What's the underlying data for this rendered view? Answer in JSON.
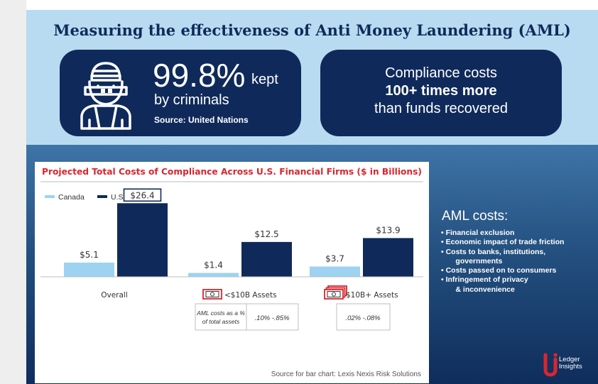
{
  "title": "Measuring the effectiveness of Anti Money Laundering (AML)",
  "stat_left": {
    "big": "99.8%",
    "small": "kept",
    "sub": "by criminals",
    "source": "Source: United Nations",
    "icon": "criminal-icon"
  },
  "stat_right": {
    "line1": "Compliance costs",
    "line2": "100+ times more",
    "line3": "than funds recovered"
  },
  "chart_data": {
    "type": "bar",
    "title": "Projected Total Costs of Compliance Across U.S. Financial Firms ($ in Billions)",
    "categories": [
      "Overall",
      "<$10B Assets",
      "$10B+ Assets"
    ],
    "series": [
      {
        "name": "Canada",
        "values": [
          5.1,
          1.4,
          3.7
        ],
        "labels": [
          "$5.1",
          "$1.4",
          "$3.7"
        ],
        "color": "#9dd3f1"
      },
      {
        "name": "U.S.",
        "values": [
          26.4,
          12.5,
          13.9
        ],
        "labels": [
          "$26.4",
          "$12.5",
          "$13.9"
        ],
        "color": "#0f2a5a"
      }
    ],
    "ylim": [
      0,
      28
    ],
    "grid": false,
    "legend": "top-left",
    "highlight": "$26.4",
    "category_icons": [
      "",
      "cash-icon",
      "cash-stack-icon"
    ],
    "table": {
      "label": [
        "AML costs as a %",
        "of total assets"
      ],
      "values": [
        ".10% -.85%",
        ".02% -.08%"
      ]
    },
    "source": "Source for bar chart: Lexis Nexis Risk Solutions"
  },
  "aml_costs": {
    "title": "AML costs:",
    "items": [
      "• Financial exclusion",
      "• Economic impact of trade friction",
      "• Costs to banks, institutions,",
      "       governments",
      "• Costs passed on to consumers",
      "• Infringement of privacy",
      "       & inconvenience"
    ]
  },
  "brand": {
    "line1": "Ledger",
    "line2": "Insights",
    "icon": "ledger-insights-logo"
  },
  "colors": {
    "navy": "#0f2a5a",
    "light_blue": "#b8dbf1",
    "bar_light": "#9dd3f1",
    "red": "#d9262f"
  }
}
